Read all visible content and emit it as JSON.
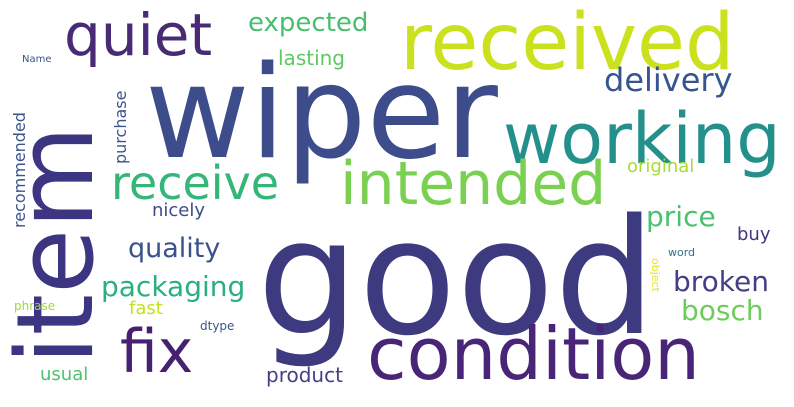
{
  "words": {
    "good": {
      "text": "good",
      "color": "#3e3a7f"
    },
    "wiper": {
      "text": "wiper",
      "color": "#3d4c8a"
    },
    "condition": {
      "text": "condition",
      "color": "#482576"
    },
    "item": {
      "text": "item",
      "color": "#3b3582"
    },
    "received": {
      "text": "received",
      "color": "#cce11e"
    },
    "working": {
      "text": "working",
      "color": "#23908c"
    },
    "intended": {
      "text": "intended",
      "color": "#7ad151"
    },
    "receive": {
      "text": "receive",
      "color": "#34b679"
    },
    "quiet": {
      "text": "quiet",
      "color": "#482b74"
    },
    "fix": {
      "text": "fix",
      "color": "#46216f"
    },
    "delivery": {
      "text": "delivery",
      "color": "#36548d"
    },
    "expected": {
      "text": "expected",
      "color": "#46c06f"
    },
    "packaging": {
      "text": "packaging",
      "color": "#2ab07f"
    },
    "quality": {
      "text": "quality",
      "color": "#3b518b"
    },
    "price": {
      "text": "price",
      "color": "#4ac16d"
    },
    "broken": {
      "text": "broken",
      "color": "#433e85"
    },
    "bosch": {
      "text": "bosch",
      "color": "#6ccd5a"
    },
    "product": {
      "text": "product",
      "color": "#424086"
    },
    "nicely": {
      "text": "nicely",
      "color": "#3e4c8a"
    },
    "lasting": {
      "text": "lasting",
      "color": "#5ec962"
    },
    "purchase": {
      "text": "purchase",
      "color": "#39558c"
    },
    "recommended": {
      "text": "recommended",
      "color": "#3b528b"
    },
    "original": {
      "text": "original",
      "color": "#a8db34"
    },
    "buy": {
      "text": "buy",
      "color": "#45347f"
    },
    "fast": {
      "text": "fast",
      "color": "#c4e021"
    },
    "usual": {
      "text": "usual",
      "color": "#4cc26c"
    },
    "dtype": {
      "text": "dtype",
      "color": "#38598c"
    },
    "phrase": {
      "text": "phrase",
      "color": "#a0da39"
    },
    "word": {
      "text": "word",
      "color": "#2c718e"
    },
    "object": {
      "text": "object",
      "color": "#e5e419"
    },
    "name": {
      "text": "Name",
      "color": "#3b528b"
    }
  }
}
